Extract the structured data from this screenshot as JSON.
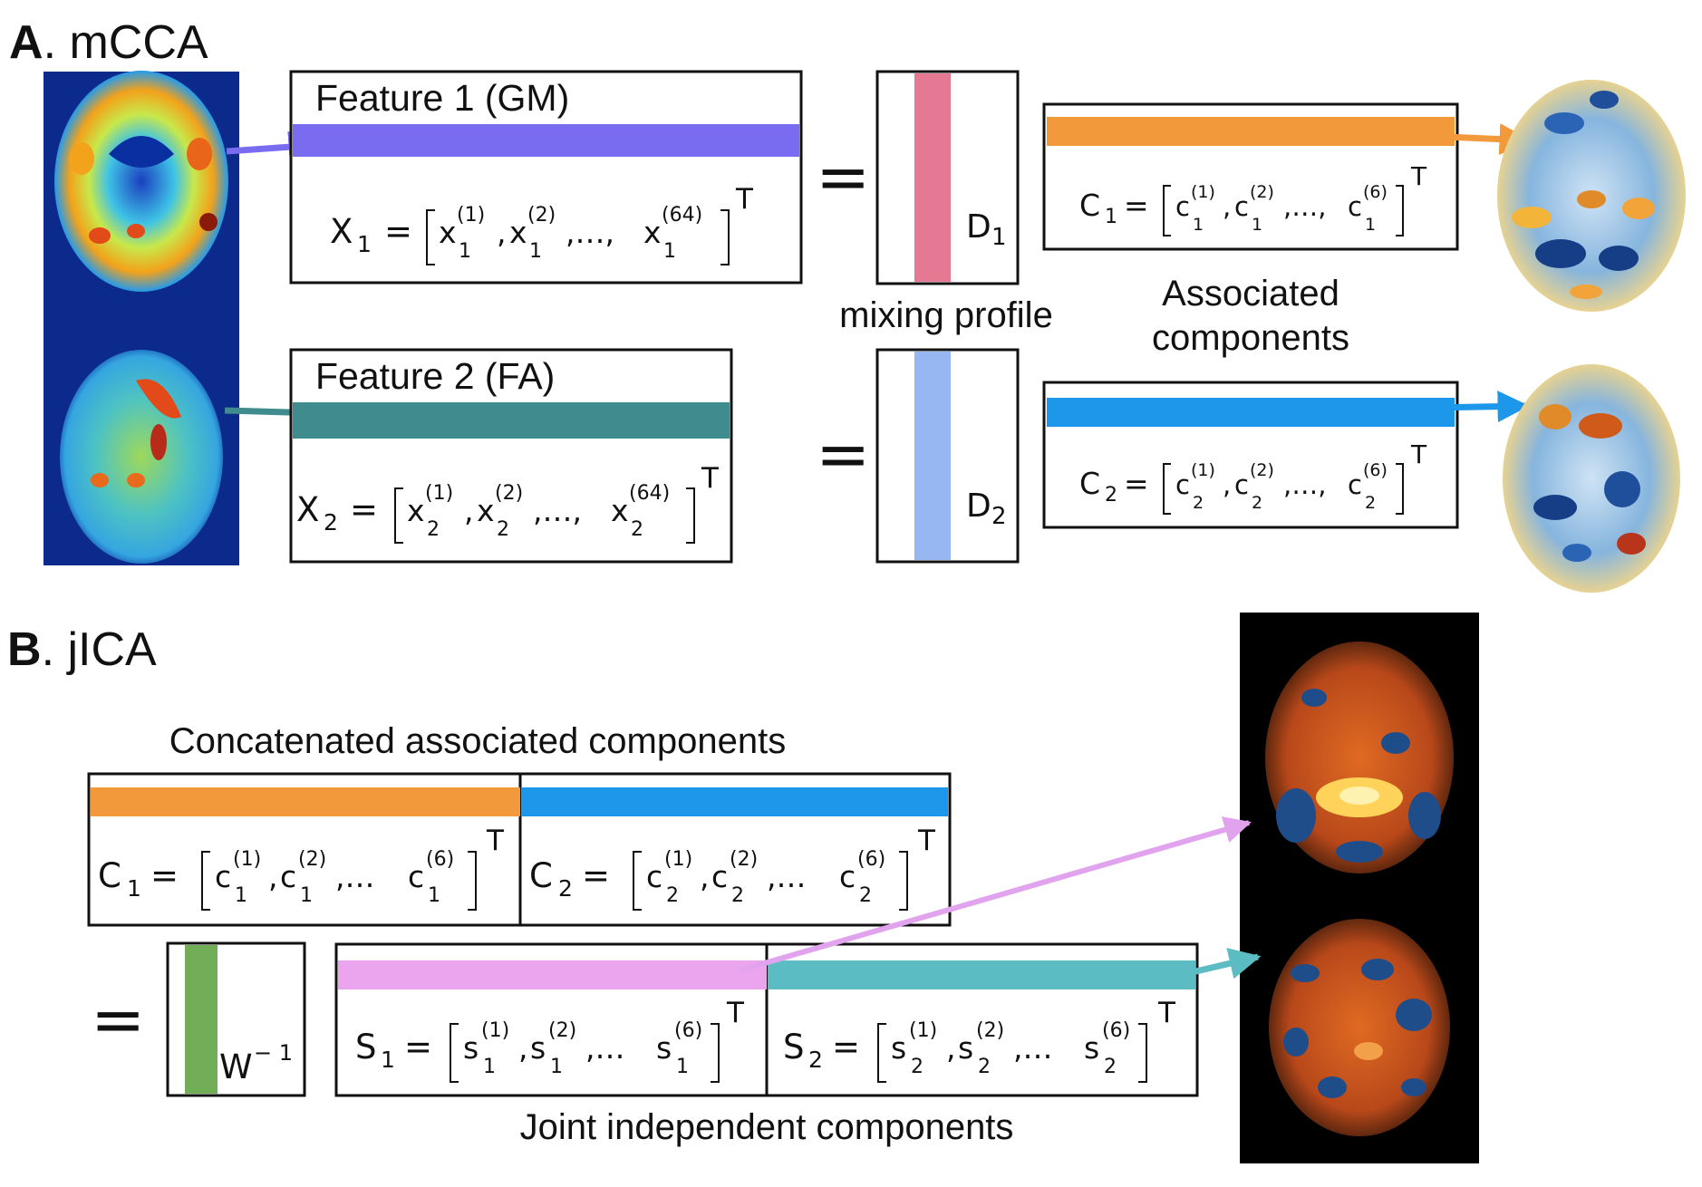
{
  "panel_a": {
    "letter": "A",
    "name": ". mCCA",
    "feature1": {
      "title": "Feature 1 (GM)",
      "color": "#7a6cf0",
      "eq": {
        "lhs": "X",
        "lhs_sub": "1",
        "var": "x",
        "sub": "1",
        "sups": [
          "(1)",
          "(2)",
          "(64)"
        ]
      }
    },
    "feature2": {
      "title": "Feature 2 (FA)",
      "color": "#3f8b8d",
      "eq": {
        "lhs": "X",
        "lhs_sub": "2",
        "var": "x",
        "sub": "2",
        "sups": [
          "(1)",
          "(2)",
          "(64)"
        ]
      }
    },
    "equals": "=",
    "mixing_profile_label": "mixing profile",
    "d1": {
      "label": "D",
      "sub": "1",
      "color": "#e57892"
    },
    "d2": {
      "label": "D",
      "sub": "2",
      "color": "#96b7f2"
    },
    "associated_label_line1": "Associated",
    "associated_label_line2": "components",
    "c1": {
      "color": "#f29a3b",
      "eq": {
        "lhs": "C",
        "lhs_sub": "1",
        "var": "c",
        "sub": "1",
        "sups": [
          "(1)",
          "(2)",
          "(6)"
        ]
      }
    },
    "c2": {
      "color": "#1d97ea",
      "eq": {
        "lhs": "C",
        "lhs_sub": "2",
        "var": "c",
        "sub": "2",
        "sups": [
          "(1)",
          "(2)",
          "(6)"
        ]
      }
    },
    "transpose": "T",
    "dots_wide": ",…, ",
    "dots": ",…"
  },
  "panel_b": {
    "letter": "B",
    "name": ". jICA",
    "concat_label": "Concatenated associated components",
    "joint_label": "Joint independent components",
    "equals": "=",
    "w_inv": {
      "label": "W",
      "sup": "− 1",
      "color": "#72ad58"
    },
    "s1": {
      "color": "#eba5ee",
      "eq": {
        "lhs": "S",
        "lhs_sub": "1",
        "var": "s",
        "sub": "1",
        "sups": [
          "(1)",
          "(2)",
          "(6)"
        ]
      }
    },
    "s2": {
      "color": "#5bbcc3",
      "eq": {
        "lhs": "S",
        "lhs_sub": "2",
        "var": "s",
        "sub": "2",
        "sups": [
          "(1)",
          "(2)",
          "(6)"
        ]
      }
    },
    "transpose": "T",
    "dots": ",…"
  }
}
